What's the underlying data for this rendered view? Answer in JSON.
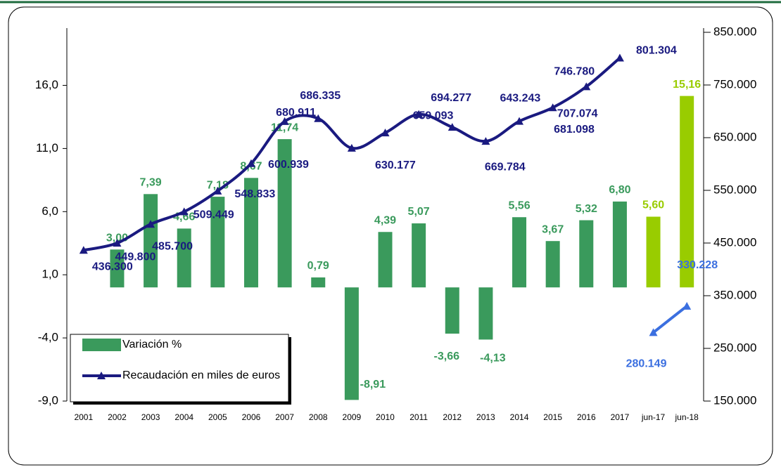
{
  "chart_data": {
    "type": "bar-line",
    "categories": [
      "2001",
      "2002",
      "2003",
      "2004",
      "2005",
      "2006",
      "2007",
      "2008",
      "2009",
      "2010",
      "2011",
      "2012",
      "2013",
      "2014",
      "2015",
      "2016",
      "2017",
      "jun-17",
      "jun-18"
    ],
    "ylim": [
      -9,
      20.2
    ],
    "yticks": [
      {
        "value": -9,
        "label": "-9,0"
      },
      {
        "value": -4,
        "label": "-4,0"
      },
      {
        "value": 1,
        "label": "1,0"
      },
      {
        "value": 6,
        "label": "6,0"
      },
      {
        "value": 11,
        "label": "11,0"
      },
      {
        "value": 16,
        "label": "16,0"
      }
    ],
    "y2lim": [
      150000,
      850000
    ],
    "y2ticks": [
      {
        "value": 150000,
        "label": "150.000"
      },
      {
        "value": 250000,
        "label": "250.000"
      },
      {
        "value": 350000,
        "label": "350.000"
      },
      {
        "value": 450000,
        "label": "450.000"
      },
      {
        "value": 550000,
        "label": "550.000"
      },
      {
        "value": 650000,
        "label": "650.000"
      },
      {
        "value": 750000,
        "label": "750.000"
      },
      {
        "value": 850000,
        "label": "850.000"
      }
    ],
    "legend": "bottom-left",
    "series": [
      {
        "name": "Variación %",
        "type": "bar",
        "color": "#3a9a5c",
        "colors": [
          "#3a9a5c",
          "#3a9a5c",
          "#3a9a5c",
          "#3a9a5c",
          "#3a9a5c",
          "#3a9a5c",
          "#3a9a5c",
          "#3a9a5c",
          "#3a9a5c",
          "#3a9a5c",
          "#3a9a5c",
          "#3a9a5c",
          "#3a9a5c",
          "#3a9a5c",
          "#3a9a5c",
          "#3a9a5c",
          "#3a9a5c",
          "#99cc00",
          "#99cc00"
        ],
        "values": [
          null,
          3.0,
          7.39,
          4.66,
          7.18,
          8.67,
          11.74,
          0.79,
          -8.91,
          4.39,
          5.07,
          -3.66,
          -4.13,
          5.56,
          3.67,
          5.32,
          6.8,
          5.6,
          15.16
        ],
        "value_labels": [
          null,
          "3,00",
          "7,39",
          "4,66",
          "7,18",
          "8,67",
          "11,74",
          "0,79",
          "-8,91",
          "4,39",
          "5,07",
          "-3,66",
          "-4,13",
          "5,56",
          "3,67",
          "5,32",
          "6,80",
          "5,60",
          "15,16"
        ]
      },
      {
        "name": "Recaudación en miles de euros",
        "type": "line",
        "axis": "y2",
        "color": "#1a1a80",
        "values": [
          436300,
          449800,
          485700,
          509449,
          548833,
          600939,
          680911,
          686335,
          630177,
          659093,
          694277,
          669784,
          643243,
          681098,
          707074,
          746780,
          801304,
          null,
          null
        ],
        "value_labels": [
          "436.300",
          "449.800",
          "485.700",
          "509.449",
          "548.833",
          "600.939",
          "680.911",
          "686.335",
          "630.177",
          "659.093",
          "694.277",
          "669.784",
          "643.243",
          "681.098",
          "707.074",
          "746.780",
          "801.304",
          null,
          null
        ]
      },
      {
        "type": "line",
        "axis": "y2",
        "color": "#3b6fe0",
        "values": [
          null,
          null,
          null,
          null,
          null,
          null,
          null,
          null,
          null,
          null,
          null,
          null,
          null,
          null,
          null,
          null,
          null,
          280149,
          330228
        ],
        "value_labels": [
          null,
          null,
          null,
          null,
          null,
          null,
          null,
          null,
          null,
          null,
          null,
          null,
          null,
          null,
          null,
          null,
          null,
          "280.149",
          "330.228"
        ]
      }
    ]
  }
}
